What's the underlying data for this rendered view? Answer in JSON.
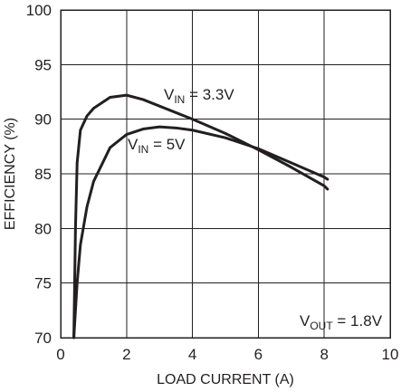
{
  "chart_data": {
    "type": "line",
    "xlabel": "LOAD CURRENT (A)",
    "ylabel": "EFFICIENCY (%)",
    "xlim": [
      0,
      10
    ],
    "ylim": [
      70,
      100
    ],
    "xticks": [
      "0",
      "2",
      "4",
      "6",
      "8",
      "10"
    ],
    "yticks": [
      "70",
      "75",
      "80",
      "85",
      "90",
      "95",
      "100"
    ],
    "grid": true,
    "series": [
      {
        "label_main": "V",
        "label_sub": "IN",
        "label_rest": " = 3.3V",
        "points": [
          [
            0.4,
            70
          ],
          [
            0.45,
            80
          ],
          [
            0.5,
            86
          ],
          [
            0.6,
            89
          ],
          [
            0.8,
            90.3
          ],
          [
            1.0,
            91
          ],
          [
            1.5,
            92
          ],
          [
            2.0,
            92.2
          ],
          [
            2.5,
            91.8
          ],
          [
            3.0,
            91.2
          ],
          [
            4.0,
            90
          ],
          [
            5.0,
            88.7
          ],
          [
            6.0,
            87.2
          ],
          [
            7.0,
            85.6
          ],
          [
            8.0,
            83.9
          ],
          [
            8.1,
            83.6
          ]
        ]
      },
      {
        "label_main": "V",
        "label_sub": "IN",
        "label_rest": " = 5V",
        "points": [
          [
            0.4,
            70
          ],
          [
            0.5,
            75
          ],
          [
            0.6,
            78.5
          ],
          [
            0.8,
            82
          ],
          [
            1.0,
            84.3
          ],
          [
            1.5,
            87.4
          ],
          [
            2.0,
            88.6
          ],
          [
            2.5,
            89.1
          ],
          [
            3.0,
            89.3
          ],
          [
            3.5,
            89.2
          ],
          [
            4.0,
            89
          ],
          [
            5.0,
            88.3
          ],
          [
            6.0,
            87.3
          ],
          [
            7.0,
            86
          ],
          [
            8.0,
            84.7
          ],
          [
            8.1,
            84.5
          ]
        ]
      }
    ],
    "annotation": {
      "main": "V",
      "sub": "OUT",
      "rest": " = 1.8V"
    }
  }
}
